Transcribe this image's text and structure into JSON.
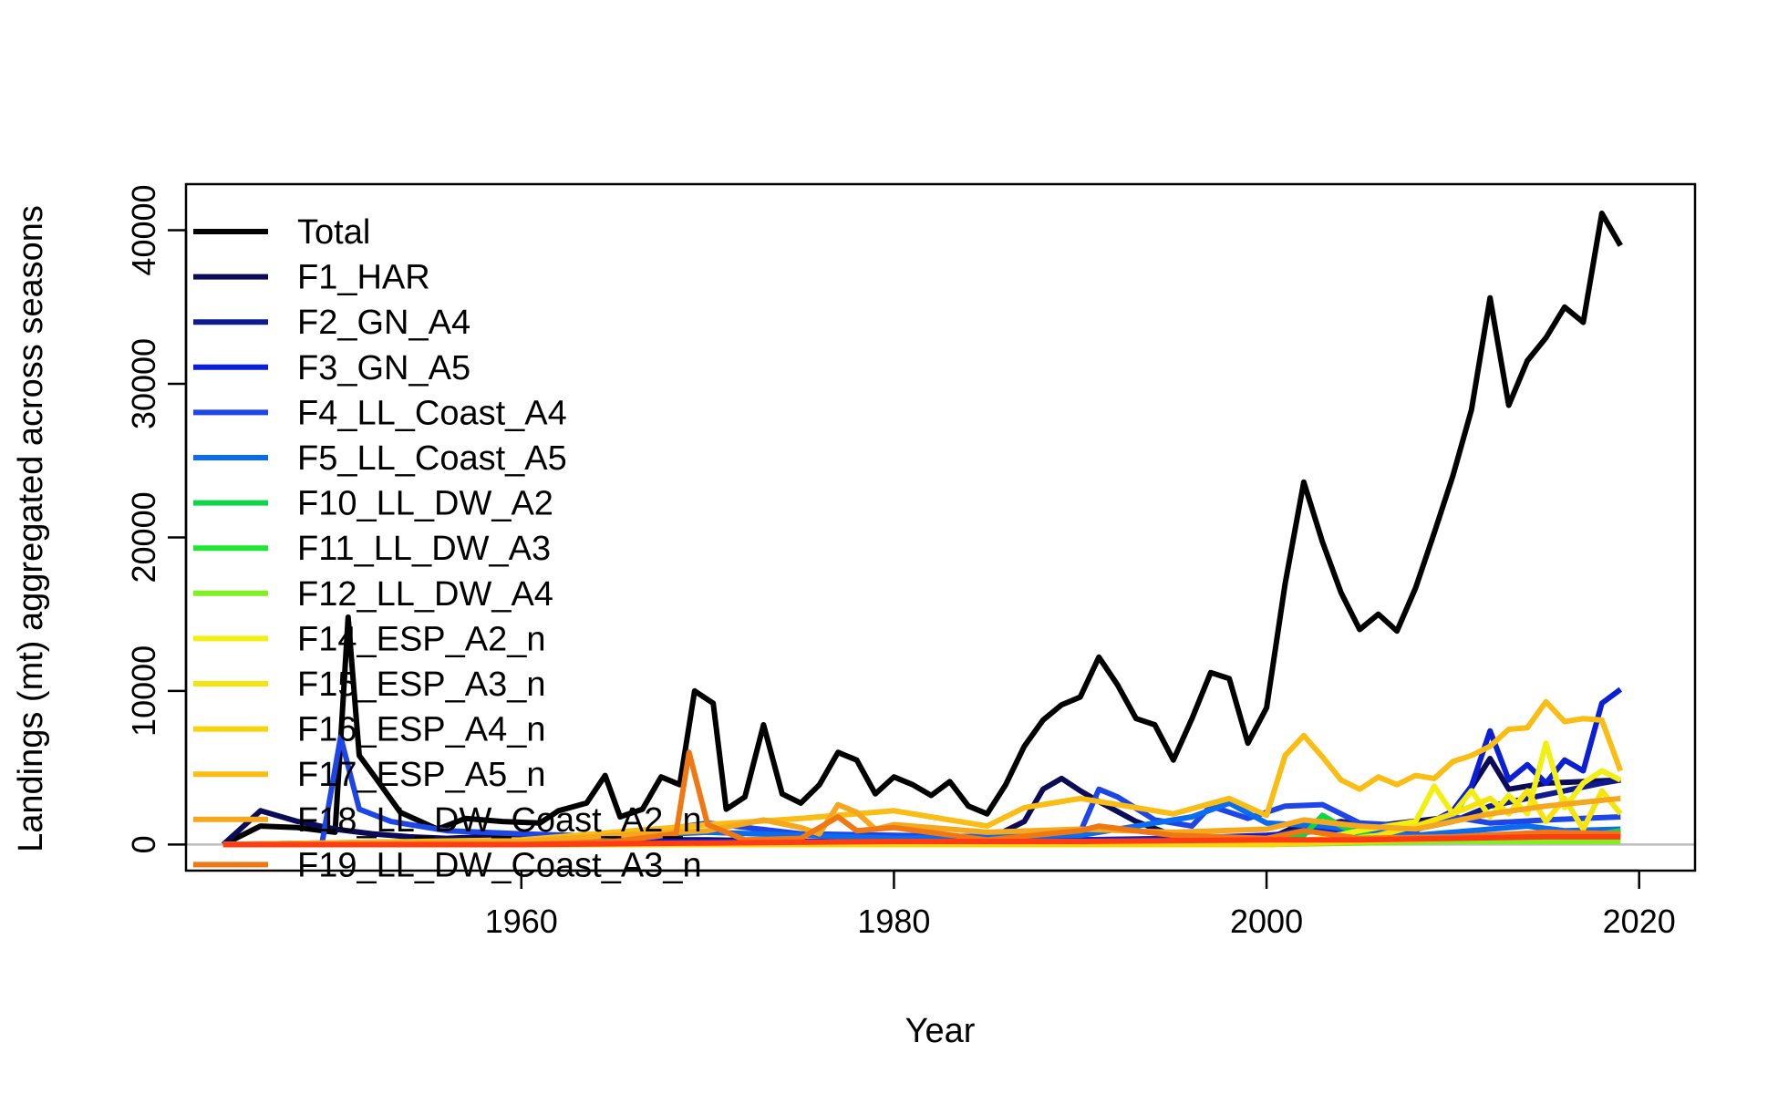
{
  "chart_data": {
    "type": "line",
    "title": "",
    "xlabel": "Year",
    "ylabel": "Landings (mt) aggregated across seasons",
    "xlim": [
      1942,
      2023
    ],
    "ylim": [
      -1700,
      43000
    ],
    "x_ticks": [
      1960,
      1980,
      2000,
      2020
    ],
    "y_ticks": [
      0,
      10000,
      20000,
      30000,
      40000
    ],
    "x_tick_labels": [
      "1960",
      "1980",
      "2000",
      "2020"
    ],
    "y_tick_labels": [
      "0",
      "10000",
      "20000",
      "30000",
      "40000"
    ],
    "grid": false,
    "legend_position": "top-left",
    "reference_line": {
      "y": 0,
      "color": "#bdbdbd"
    },
    "series": [
      {
        "name": "Total",
        "color": "#000000",
        "x": [
          1944,
          1946,
          1948,
          1950,
          1950.7,
          1951.3,
          1952.2,
          1953.5,
          1955.5,
          1957,
          1959,
          1961,
          1962,
          1963.5,
          1964.5,
          1965.3,
          1966.5,
          1967.5,
          1968.5,
          1969.3,
          1970.3,
          1971,
          1972,
          1973,
          1974,
          1975,
          1976,
          1977,
          1978,
          1979,
          1980,
          1981,
          1982,
          1983,
          1984,
          1985,
          1986,
          1987,
          1988,
          1989,
          1990,
          1991,
          1992,
          1993,
          1994,
          1995,
          1996,
          1997,
          1998,
          1999,
          2000,
          2001,
          2002,
          2003,
          2004,
          2005,
          2006,
          2007,
          2008,
          2009,
          2010,
          2011,
          2012,
          2013,
          2014,
          2015,
          2016,
          2017,
          2018,
          2019
        ],
        "y": [
          0,
          1200,
          1100,
          800,
          14800,
          5800,
          4300,
          2100,
          1000,
          1700,
          1500,
          1400,
          2200,
          2700,
          4500,
          1800,
          2300,
          4400,
          3900,
          10000,
          9200,
          2300,
          3100,
          7800,
          3300,
          2700,
          3900,
          6000,
          5500,
          3300,
          4400,
          3900,
          3200,
          4100,
          2500,
          2000,
          3900,
          6400,
          8100,
          9100,
          9600,
          12200,
          10400,
          8200,
          7800,
          5500,
          8200,
          11200,
          10800,
          6600,
          8900,
          17000,
          23600,
          19700,
          16400,
          14000,
          15000,
          13900,
          16700,
          20300,
          24000,
          28300,
          35600,
          28600,
          31500,
          33000,
          35000,
          34000,
          41100,
          39000
        ]
      },
      {
        "name": "F1_HAR",
        "color": "#0b0b57",
        "x": [
          1944,
          1946,
          1948,
          1950,
          1952,
          1954,
          1956,
          1958,
          1960,
          1965,
          1970,
          1975,
          1980,
          1985,
          1987,
          1988,
          1989,
          1990,
          1991,
          1993,
          1995,
          2000,
          2002,
          2005,
          2010,
          2012,
          2013,
          2015,
          2019
        ],
        "y": [
          0,
          2200,
          1500,
          1000,
          700,
          500,
          400,
          500,
          400,
          300,
          300,
          200,
          200,
          300,
          1500,
          3600,
          4300,
          3500,
          2800,
          1500,
          600,
          300,
          1400,
          1100,
          1800,
          5600,
          3600,
          4000,
          4200
        ]
      },
      {
        "name": "F2_GN_A4",
        "color": "#0f1a8c",
        "x": [
          1944,
          1960,
          1970,
          1980,
          1990,
          1998,
          2000,
          2002,
          2004,
          2006,
          2008,
          2010,
          2012,
          2014,
          2016,
          2018,
          2019
        ],
        "y": [
          0,
          0,
          100,
          200,
          300,
          400,
          500,
          1000,
          1500,
          1200,
          1000,
          1500,
          2500,
          3000,
          3500,
          4000,
          4200
        ]
      },
      {
        "name": "F3_GN_A5",
        "color": "#0a1fd6",
        "x": [
          1944,
          1970,
          1980,
          1990,
          1995,
          2000,
          2004,
          2006,
          2008,
          2010,
          2011,
          2012,
          2013,
          2014,
          2015,
          2016,
          2017,
          2018,
          2019
        ],
        "y": [
          0,
          200,
          200,
          300,
          400,
          600,
          1000,
          800,
          900,
          2200,
          3800,
          7400,
          4200,
          5200,
          4000,
          5500,
          4800,
          9200,
          10100
        ]
      },
      {
        "name": "F4_LL_Coast_A4",
        "color": "#1e46e6",
        "x": [
          1944,
          1949.3,
          1950.3,
          1951.3,
          1953,
          1956,
          1960,
          1965,
          1970,
          1975,
          1980,
          1985,
          1988,
          1990,
          1991,
          1992,
          1994,
          1996,
          1997,
          1999,
          2001,
          2003,
          2005,
          2008,
          2010,
          2012,
          2015,
          2019
        ],
        "y": [
          0,
          100,
          7000,
          2300,
          1500,
          900,
          700,
          500,
          1400,
          700,
          600,
          500,
          600,
          800,
          3600,
          3100,
          1600,
          1200,
          2500,
          1700,
          2500,
          2600,
          1400,
          1200,
          1800,
          1400,
          1600,
          1800
        ]
      },
      {
        "name": "F5_LL_Coast_A5",
        "color": "#0a6df0",
        "x": [
          1944,
          1960,
          1970,
          1980,
          1990,
          1996,
          1998,
          2000,
          2003,
          2005,
          2008,
          2010,
          2012,
          2014,
          2016,
          2019
        ],
        "y": [
          0,
          300,
          800,
          400,
          600,
          1800,
          2700,
          1400,
          1200,
          900,
          600,
          800,
          1000,
          1200,
          900,
          1000
        ]
      },
      {
        "name": "F10_LL_DW_A2",
        "color": "#0fd648",
        "x": [
          1944,
          2000,
          2002,
          2003,
          2004,
          2005,
          2006,
          2008,
          2010,
          2012,
          2014,
          2016,
          2018,
          2019
        ],
        "y": [
          0,
          0,
          600,
          1900,
          1200,
          700,
          500,
          400,
          300,
          500,
          400,
          600,
          700,
          900
        ]
      },
      {
        "name": "F11_LL_DW_A3",
        "color": "#1fe632",
        "x": [
          1944,
          2000,
          2005,
          2010,
          2015,
          2019
        ],
        "y": [
          0,
          0,
          200,
          300,
          300,
          400
        ]
      },
      {
        "name": "F12_LL_DW_A4",
        "color": "#80f022",
        "x": [
          1944,
          2000,
          2005,
          2010,
          2015,
          2019
        ],
        "y": [
          0,
          0,
          100,
          200,
          200,
          200
        ]
      },
      {
        "name": "F14_ESP_A2_n",
        "color": "#f2ef12",
        "x": [
          1944,
          2000,
          2003,
          2005,
          2008,
          2009,
          2010,
          2011,
          2012,
          2013,
          2014,
          2015,
          2016,
          2017,
          2018,
          2019
        ],
        "y": [
          0,
          0,
          400,
          900,
          1500,
          3800,
          2000,
          3500,
          1800,
          3200,
          2000,
          6600,
          2400,
          4000,
          4800,
          4200
        ]
      },
      {
        "name": "F15_ESP_A3_n",
        "color": "#f5e40e",
        "x": [
          1944,
          2000,
          2004,
          2006,
          2008,
          2010,
          2012,
          2013,
          2014,
          2015,
          2016,
          2017,
          2018,
          2019
        ],
        "y": [
          0,
          0,
          300,
          600,
          1200,
          2000,
          3000,
          2000,
          3500,
          1500,
          3000,
          1000,
          3500,
          2000
        ]
      },
      {
        "name": "F16_ESP_A4_n",
        "color": "#f7d50a",
        "x": [
          1944,
          2000,
          2005,
          2010,
          2015,
          2019
        ],
        "y": [
          0,
          0,
          200,
          400,
          500,
          600
        ]
      },
      {
        "name": "F17_ESP_A5_n",
        "color": "#f9bd14",
        "x": [
          1944,
          1960,
          1965,
          1970,
          1975,
          1980,
          1985,
          1987,
          1990,
          1995,
          1998,
          2000,
          2001,
          2002,
          2003,
          2004,
          2005,
          2006,
          2007,
          2008,
          2009,
          2010,
          2011,
          2012,
          2013,
          2014,
          2015,
          2016,
          2017,
          2018,
          2019
        ],
        "y": [
          0,
          300,
          800,
          1300,
          1700,
          2200,
          1200,
          2400,
          3000,
          2000,
          3000,
          1900,
          5800,
          7100,
          5700,
          4200,
          3600,
          4400,
          3900,
          4500,
          4300,
          5400,
          5800,
          6400,
          7500,
          7600,
          9300,
          8000,
          8200,
          8100,
          4800
        ]
      },
      {
        "name": "F18_LL_DW_Coast_A2_n",
        "color": "#f5a81e",
        "x": [
          1944,
          1960,
          1965,
          1970,
          1973,
          1975,
          1976,
          1977,
          1978,
          1979,
          1980,
          1985,
          1990,
          1995,
          2000,
          2002,
          2005,
          2008,
          2010,
          2012,
          2015,
          2019
        ],
        "y": [
          0,
          200,
          600,
          900,
          1600,
          1100,
          700,
          2600,
          2100,
          1000,
          1300,
          800,
          1000,
          800,
          1000,
          1600,
          1200,
          1000,
          1500,
          2000,
          2500,
          3000
        ]
      },
      {
        "name": "F19_LL_DW_Coast_A3_n",
        "color": "#f07814",
        "x": [
          1944,
          1960,
          1965,
          1968.3,
          1969,
          1970,
          1972,
          1975,
          1977,
          1978,
          1980,
          1985,
          1990,
          1991,
          1995,
          2000,
          2002,
          2005,
          2010,
          2015,
          2019
        ],
        "y": [
          0,
          0,
          200,
          700,
          6000,
          1300,
          300,
          400,
          1800,
          900,
          1100,
          300,
          900,
          1200,
          600,
          400,
          900,
          400,
          500,
          800,
          700
        ]
      },
      {
        "name": "",
        "color": "#ff3c14",
        "x": [
          1944,
          1960,
          1970,
          1980,
          1990,
          2000,
          2005,
          2010,
          2015,
          2019
        ],
        "y": [
          0,
          0,
          100,
          200,
          200,
          300,
          300,
          400,
          500,
          500
        ]
      }
    ]
  }
}
